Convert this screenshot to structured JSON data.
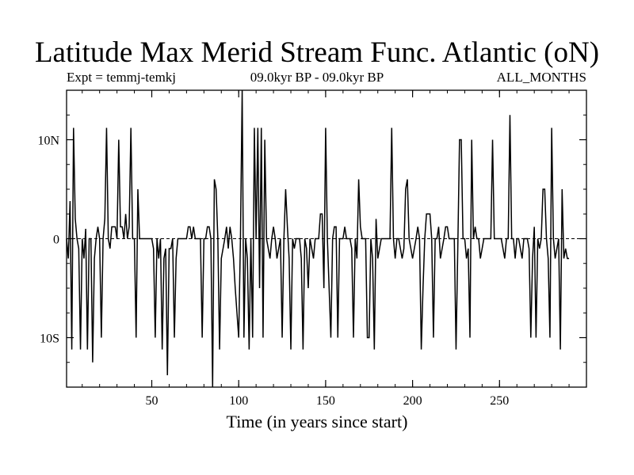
{
  "chart_data": {
    "type": "line",
    "title": "Latitude Max Merid Stream Func. Atlantic (oN)",
    "subtitle_left": "Expt = temmj-temkj",
    "subtitle_center": "09.0kyr BP - 09.0kyr BP",
    "subtitle_right": "ALL_MONTHS",
    "xlabel": "Time (in years since start)",
    "ylabel": "",
    "xlim": [
      1,
      300
    ],
    "ylim": [
      -15,
      15
    ],
    "x_ticks": [
      50,
      100,
      150,
      200,
      250
    ],
    "x_tick_labels": [
      "50",
      "100",
      "150",
      "200",
      "250"
    ],
    "y_ticks": [
      -10,
      0,
      10
    ],
    "y_tick_labels": [
      "10S",
      "0",
      "10N"
    ],
    "zero_line": true,
    "series": [
      {
        "name": "Latitude Max Merid Stream Func. Atlantic",
        "x_start": 1,
        "x_step": 1,
        "values": [
          0,
          -2,
          3.8,
          -11.2,
          11.2,
          2,
          0,
          -1,
          -11.2,
          0,
          -2,
          1,
          -11.2,
          0,
          0,
          -12.5,
          -2,
          0,
          1.2,
          0,
          -10,
          0,
          2,
          11.2,
          0,
          -1,
          1.2,
          1.2,
          1.2,
          0,
          10,
          1.2,
          1.2,
          0,
          2.5,
          0,
          1.2,
          11.2,
          0,
          0,
          -10,
          5,
          0,
          0,
          0,
          0,
          0,
          0,
          0,
          0,
          -1,
          -10,
          0,
          -2,
          0,
          -11.2,
          -2,
          -1,
          -13.8,
          -1,
          -1,
          0,
          -10,
          -2,
          0,
          0,
          0,
          0,
          0,
          0,
          1.2,
          1.2,
          0,
          1.2,
          0,
          0,
          0,
          0,
          -10,
          0,
          0,
          1.2,
          1.2,
          0,
          -15,
          6,
          5,
          0,
          -11.2,
          -2,
          -1,
          0,
          1.2,
          -1,
          1.2,
          0,
          -2,
          -5,
          -7.5,
          -10,
          0,
          15,
          -10,
          0,
          -2,
          -11.2,
          0,
          -10,
          11.2,
          0,
          11.2,
          -5,
          11.2,
          -10,
          10,
          0,
          -1,
          -2,
          0,
          1.2,
          0,
          -2,
          -1,
          0,
          -10,
          0,
          5,
          1.2,
          -2,
          -11.2,
          0,
          -1,
          0,
          0,
          0,
          -2,
          -11.2,
          0,
          -1,
          -5,
          0,
          -1,
          -2,
          0,
          0,
          0,
          2.5,
          2.5,
          -5,
          11.2,
          0,
          -5,
          -10,
          0,
          1.2,
          1.2,
          -10,
          0,
          0,
          0,
          1.2,
          0,
          0,
          0,
          -1,
          -10,
          0,
          -2,
          6,
          1.2,
          0,
          0,
          0,
          -10,
          -10,
          0,
          -2,
          -11.2,
          2,
          -2,
          -1,
          0,
          0,
          0,
          0,
          0,
          0,
          11.2,
          0,
          -2,
          0,
          0,
          -1,
          -2,
          -1,
          5,
          6,
          0,
          -1,
          -2,
          -1,
          0,
          1.2,
          0,
          -11.2,
          -5,
          0,
          2.5,
          2.5,
          2.5,
          0,
          -10,
          0,
          0,
          1.2,
          -2,
          -1,
          0,
          1.2,
          1.2,
          0,
          0,
          0,
          0,
          -11.2,
          -1,
          10,
          10,
          0,
          0,
          -2,
          -1,
          -10,
          10,
          0,
          1.2,
          0,
          0,
          -2,
          -1,
          0,
          0,
          0,
          0,
          0,
          10,
          0,
          0,
          0,
          0,
          0,
          -1,
          -2,
          0,
          0,
          12.5,
          0,
          0,
          -2,
          0,
          0,
          -1,
          -2,
          0,
          0,
          0,
          -1,
          -10,
          -2,
          1.2,
          -10,
          0,
          -1,
          0,
          5,
          5,
          0,
          -2,
          -10,
          11.2,
          0,
          -2,
          -1,
          0,
          -11.2,
          5,
          -2,
          -1,
          -2,
          -2
        ]
      }
    ]
  }
}
